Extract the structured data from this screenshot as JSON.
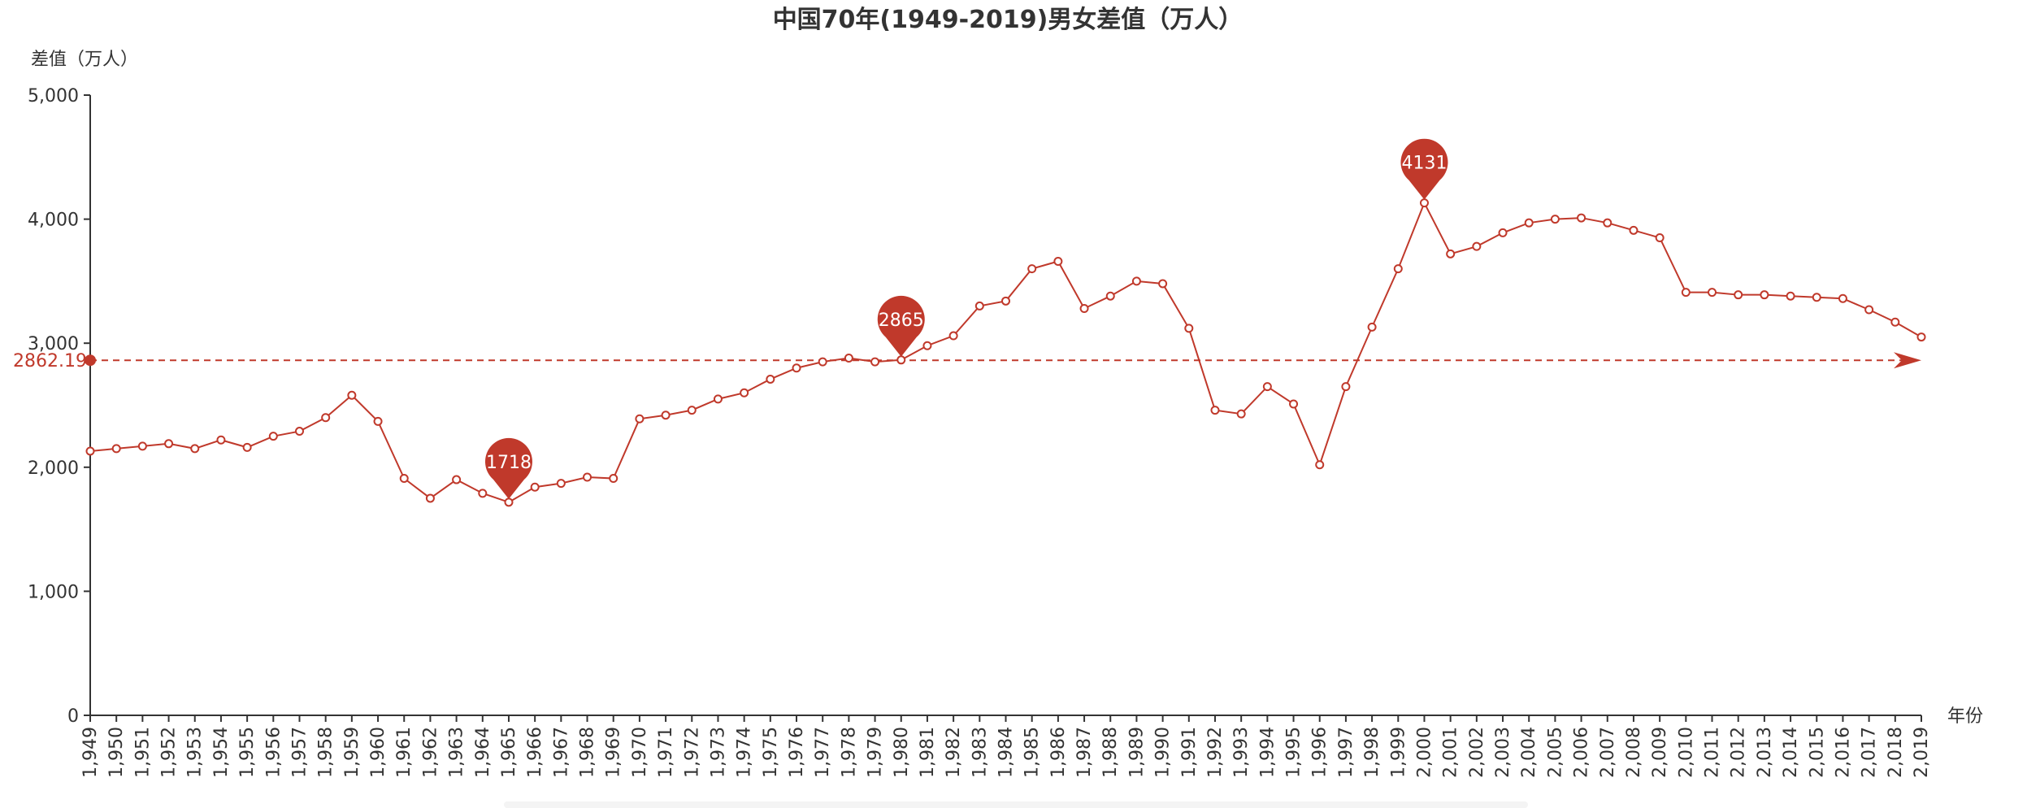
{
  "chart_data": {
    "type": "line",
    "title": "中国70年(1949-2019)男女差值（万人）",
    "xlabel": "年份",
    "ylabel": "差值（万人）",
    "ylim": [
      0,
      5000
    ],
    "yticks": [
      "0",
      "1,000",
      "2,000",
      "3,000",
      "4,000",
      "5,000"
    ],
    "yticks_values": [
      0,
      1000,
      2000,
      3000,
      4000,
      5000
    ],
    "categories": [
      "1,949",
      "1,950",
      "1,951",
      "1,952",
      "1,953",
      "1,954",
      "1,955",
      "1,956",
      "1,957",
      "1,958",
      "1,959",
      "1,960",
      "1,961",
      "1,962",
      "1,963",
      "1,964",
      "1,965",
      "1,966",
      "1,967",
      "1,968",
      "1,969",
      "1,970",
      "1,971",
      "1,972",
      "1,973",
      "1,974",
      "1,975",
      "1,976",
      "1,977",
      "1,978",
      "1,979",
      "1,980",
      "1,981",
      "1,982",
      "1,983",
      "1,984",
      "1,985",
      "1,986",
      "1,987",
      "1,988",
      "1,989",
      "1,990",
      "1,991",
      "1,992",
      "1,993",
      "1,994",
      "1,995",
      "1,996",
      "1,997",
      "1,998",
      "1,999",
      "2,000",
      "2,001",
      "2,002",
      "2,003",
      "2,004",
      "2,005",
      "2,006",
      "2,007",
      "2,008",
      "2,009",
      "2,010",
      "2,011",
      "2,012",
      "2,013",
      "2,014",
      "2,015",
      "2,016",
      "2,017",
      "2,018",
      "2,019"
    ],
    "series": [
      {
        "values": [
          2130,
          2150,
          2170,
          2190,
          2150,
          2220,
          2160,
          2250,
          2290,
          2400,
          2580,
          2370,
          1910,
          1750,
          1900,
          1790,
          1718,
          1840,
          1870,
          1920,
          1910,
          2390,
          2420,
          2460,
          2550,
          2600,
          2710,
          2800,
          2850,
          2880,
          2850,
          2865,
          2980,
          3060,
          3300,
          3340,
          3600,
          3660,
          3280,
          3380,
          3500,
          3480,
          3120,
          2460,
          2430,
          2650,
          2510,
          2020,
          2650,
          3130,
          3600,
          4131,
          3720,
          3780,
          3890,
          3970,
          4000,
          4010,
          3970,
          3910,
          3850,
          3410,
          3410,
          3390,
          3390,
          3380,
          3370,
          3360,
          3270,
          3170,
          3050
        ],
        "color": "#c0392b"
      }
    ],
    "mark_points": [
      {
        "label": "1718",
        "category_index": 16,
        "value": 1718
      },
      {
        "label": "2865",
        "category_index": 31,
        "value": 2865
      },
      {
        "label": "4131",
        "category_index": 51,
        "value": 4131
      }
    ],
    "mark_line": {
      "label": "2862.19",
      "value": 2862.19
    },
    "grid": false,
    "legend": "none"
  }
}
